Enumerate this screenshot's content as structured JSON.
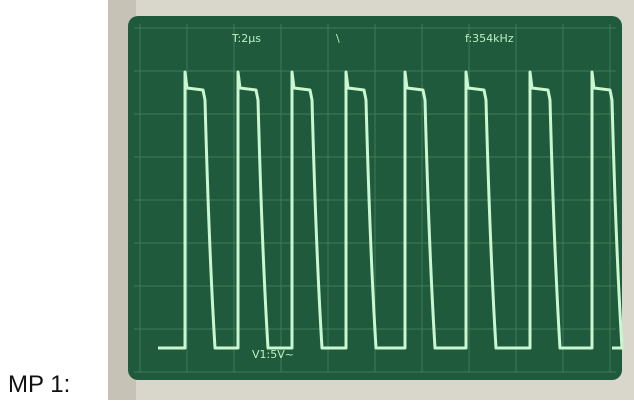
{
  "label": "MP 1:",
  "screen": {
    "timebase": "T:2µs",
    "frequency": "f:354kHz",
    "channel": "V1:5V~"
  }
}
